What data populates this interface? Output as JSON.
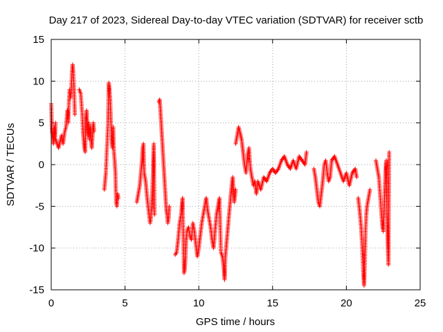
{
  "chart_data": {
    "type": "scatter",
    "title": "Day 217 of 2023, Sidereal Day-to-day VTEC variation (SDTVAR) for receiver sctb",
    "xlabel": "GPS time / hours",
    "ylabel": "SDTVAR / TECUs",
    "xlim": [
      0,
      25
    ],
    "ylim": [
      -15,
      15
    ],
    "xticks": [
      0,
      5,
      10,
      15,
      20,
      25
    ],
    "yticks": [
      -15,
      -10,
      -5,
      0,
      5,
      10,
      15
    ],
    "grid": true,
    "marker": "+",
    "color": "#ff0000",
    "series": [
      {
        "name": "SDTVAR",
        "segments": [
          [
            [
              0.0,
              7.3
            ],
            [
              0.05,
              4.0
            ],
            [
              0.1,
              3.5
            ],
            [
              0.15,
              2.5
            ],
            [
              0.2,
              4.5
            ],
            [
              0.25,
              3.0
            ],
            [
              0.3,
              5.0
            ]
          ],
          [
            [
              0.3,
              3.0
            ],
            [
              0.4,
              2.5
            ],
            [
              0.5,
              2.0
            ],
            [
              0.6,
              2.8
            ],
            [
              0.7,
              3.5
            ],
            [
              0.8,
              2.5
            ],
            [
              0.9,
              3.8
            ],
            [
              1.0,
              4.5
            ],
            [
              1.05,
              5.5
            ],
            [
              1.1,
              6.5
            ],
            [
              1.15,
              5.0
            ],
            [
              1.2,
              7.5
            ],
            [
              1.25,
              9.0
            ],
            [
              1.3,
              8.0
            ],
            [
              1.35,
              8.5
            ],
            [
              1.4,
              10.8
            ],
            [
              1.45,
              12.0
            ],
            [
              1.5,
              11.0
            ],
            [
              1.55,
              9.0
            ],
            [
              1.6,
              6.0
            ]
          ],
          [
            [
              1.9,
              9.0
            ],
            [
              2.0,
              8.5
            ],
            [
              2.1,
              6.0
            ],
            [
              2.15,
              4.0
            ],
            [
              2.2,
              3.0
            ],
            [
              2.25,
              2.0
            ],
            [
              2.3,
              1.5
            ],
            [
              2.35,
              5.5
            ],
            [
              2.4,
              6.5
            ],
            [
              2.45,
              4.0
            ],
            [
              2.5,
              3.5
            ],
            [
              2.55,
              5.0
            ],
            [
              2.6,
              3.0
            ],
            [
              2.65,
              4.5
            ],
            [
              2.7,
              3.0
            ],
            [
              2.75,
              2.0
            ],
            [
              2.8,
              3.5
            ],
            [
              2.85,
              5.0
            ],
            [
              2.9,
              4.0
            ]
          ],
          [
            [
              3.6,
              -3.0
            ],
            [
              3.65,
              -2.0
            ],
            [
              3.7,
              -1.0
            ],
            [
              3.75,
              1.0
            ],
            [
              3.8,
              3.0
            ],
            [
              3.85,
              5.0
            ],
            [
              3.9,
              9.8
            ],
            [
              3.95,
              9.0
            ],
            [
              4.0,
              7.5
            ],
            [
              4.05,
              5.0
            ],
            [
              4.1,
              3.0
            ],
            [
              4.15,
              2.0
            ],
            [
              4.2,
              4.5
            ],
            [
              4.25,
              1.5
            ],
            [
              4.3,
              0.5
            ],
            [
              4.35,
              -1.0
            ],
            [
              4.4,
              -4.5
            ],
            [
              4.45,
              -5.0
            ],
            [
              4.5,
              -3.5
            ],
            [
              4.55,
              -4.0
            ]
          ],
          [
            [
              5.8,
              -4.5
            ],
            [
              5.9,
              -3.5
            ],
            [
              6.0,
              -2.5
            ],
            [
              6.05,
              -1.5
            ],
            [
              6.1,
              -0.5
            ],
            [
              6.15,
              0.5
            ],
            [
              6.2,
              2.0
            ],
            [
              6.25,
              2.5
            ],
            [
              6.3,
              -1.0
            ],
            [
              6.4,
              -2.0
            ],
            [
              6.5,
              -4.0
            ],
            [
              6.6,
              -5.5
            ],
            [
              6.7,
              -7.0
            ],
            [
              6.75,
              -6.5
            ],
            [
              6.8,
              -5.0
            ],
            [
              6.85,
              -3.0
            ],
            [
              6.9,
              -1.0
            ],
            [
              6.95,
              2.5
            ],
            [
              7.0,
              -6.0
            ]
          ],
          [
            [
              7.3,
              7.5
            ],
            [
              7.35,
              7.8
            ],
            [
              7.4,
              6.5
            ],
            [
              7.45,
              5.0
            ],
            [
              7.5,
              3.5
            ],
            [
              7.55,
              2.0
            ],
            [
              7.6,
              0.5
            ],
            [
              7.65,
              -1.0
            ],
            [
              7.7,
              -2.5
            ],
            [
              7.75,
              -4.0
            ],
            [
              7.8,
              -5.5
            ],
            [
              7.85,
              -6.0
            ],
            [
              7.9,
              -7.0
            ],
            [
              7.95,
              -6.5
            ],
            [
              8.0,
              -5.0
            ]
          ],
          [
            [
              8.4,
              -10.8
            ],
            [
              8.5,
              -10.5
            ],
            [
              8.6,
              -9.0
            ],
            [
              8.7,
              -7.0
            ],
            [
              8.8,
              -6.0
            ],
            [
              8.9,
              -4.0
            ],
            [
              9.0,
              -13.0
            ],
            [
              9.05,
              -12.5
            ],
            [
              9.1,
              -11.0
            ],
            [
              9.15,
              -9.0
            ],
            [
              9.2,
              -8.0
            ],
            [
              9.3,
              -7.5
            ],
            [
              9.4,
              -8.5
            ],
            [
              9.5,
              -9.0
            ],
            [
              9.6,
              -7.0
            ],
            [
              9.7,
              -8.0
            ],
            [
              9.8,
              -9.5
            ],
            [
              9.9,
              -11.0
            ],
            [
              10.0,
              -10.0
            ],
            [
              10.1,
              -8.5
            ],
            [
              10.2,
              -7.0
            ],
            [
              10.3,
              -6.0
            ],
            [
              10.4,
              -5.0
            ],
            [
              10.5,
              -4.0
            ],
            [
              10.6,
              -5.5
            ],
            [
              10.7,
              -6.5
            ],
            [
              10.8,
              -7.5
            ],
            [
              10.9,
              -9.0
            ],
            [
              11.0,
              -10.0
            ],
            [
              11.1,
              -8.0
            ],
            [
              11.2,
              -6.0
            ],
            [
              11.3,
              -5.0
            ],
            [
              11.4,
              -4.0
            ],
            [
              11.5,
              -10.5
            ],
            [
              11.6,
              -11.0
            ],
            [
              11.7,
              -12.5
            ],
            [
              11.75,
              -13.8
            ],
            [
              11.8,
              -11.0
            ],
            [
              11.9,
              -9.0
            ],
            [
              12.0,
              -7.0
            ],
            [
              12.1,
              -5.0
            ],
            [
              12.2,
              -3.0
            ],
            [
              12.3,
              -1.5
            ],
            [
              12.4,
              -4.5
            ],
            [
              12.5,
              -3.0
            ]
          ],
          [
            [
              12.5,
              2.5
            ],
            [
              12.6,
              3.5
            ],
            [
              12.7,
              4.5
            ],
            [
              12.8,
              3.8
            ],
            [
              12.9,
              3.0
            ],
            [
              13.0,
              1.5
            ],
            [
              13.1,
              0.0
            ],
            [
              13.2,
              -1.0
            ],
            [
              13.3,
              1.0
            ],
            [
              13.4,
              2.0
            ],
            [
              13.5,
              -0.5
            ],
            [
              13.6,
              -1.5
            ],
            [
              13.7,
              -2.5
            ],
            [
              13.8,
              -2.0
            ],
            [
              13.9,
              -3.5
            ],
            [
              14.0,
              -2.0
            ],
            [
              14.2,
              -3.0
            ],
            [
              14.4,
              -1.5
            ],
            [
              14.6,
              -2.0
            ],
            [
              14.8,
              -1.0
            ],
            [
              15.0,
              -0.5
            ],
            [
              15.2,
              -1.0
            ],
            [
              15.4,
              -0.5
            ],
            [
              15.6,
              0.5
            ],
            [
              15.8,
              1.0
            ],
            [
              16.0,
              0.0
            ],
            [
              16.2,
              -0.5
            ],
            [
              16.4,
              0.5
            ],
            [
              16.6,
              -0.5
            ],
            [
              16.8,
              1.0
            ],
            [
              17.0,
              0.5
            ],
            [
              17.2,
              0.0
            ],
            [
              17.3,
              1.5
            ]
          ],
          [
            [
              17.8,
              -0.5
            ],
            [
              17.9,
              -1.5
            ],
            [
              18.0,
              -3.0
            ],
            [
              18.1,
              -4.5
            ],
            [
              18.2,
              -5.0
            ],
            [
              18.3,
              -3.5
            ],
            [
              18.4,
              -2.0
            ],
            [
              18.5,
              0.0
            ],
            [
              18.6,
              0.5
            ],
            [
              18.7,
              -1.0
            ],
            [
              18.8,
              -2.0
            ],
            [
              18.9,
              -1.5
            ],
            [
              19.0,
              0.5
            ],
            [
              19.2,
              1.0
            ],
            [
              19.4,
              0.0
            ],
            [
              19.6,
              -1.0
            ],
            [
              19.8,
              -2.0
            ],
            [
              20.0,
              -1.0
            ],
            [
              20.2,
              -2.5
            ],
            [
              20.4,
              -1.0
            ],
            [
              20.6,
              -0.5
            ],
            [
              20.7,
              -1.5
            ]
          ],
          [
            [
              20.8,
              -4.0
            ],
            [
              20.9,
              -5.5
            ],
            [
              21.0,
              -7.5
            ],
            [
              21.05,
              -9.0
            ],
            [
              21.1,
              -11.0
            ],
            [
              21.15,
              -13.0
            ],
            [
              21.2,
              -14.5
            ],
            [
              21.25,
              -12.0
            ],
            [
              21.3,
              -8.0
            ],
            [
              21.35,
              -6.0
            ],
            [
              21.4,
              -5.0
            ],
            [
              21.5,
              -4.0
            ],
            [
              21.6,
              -3.0
            ]
          ],
          [
            [
              22.0,
              0.5
            ],
            [
              22.1,
              -0.5
            ],
            [
              22.2,
              -1.5
            ],
            [
              22.3,
              -4.0
            ],
            [
              22.4,
              -6.5
            ],
            [
              22.45,
              -7.5
            ],
            [
              22.5,
              -8.0
            ],
            [
              22.55,
              -6.0
            ],
            [
              22.6,
              -3.0
            ],
            [
              22.65,
              -1.0
            ],
            [
              22.7,
              0.5
            ],
            [
              22.75,
              -5.5
            ],
            [
              22.8,
              -9.0
            ],
            [
              22.85,
              -12.0
            ],
            [
              22.9,
              1.5
            ]
          ]
        ]
      }
    ]
  }
}
